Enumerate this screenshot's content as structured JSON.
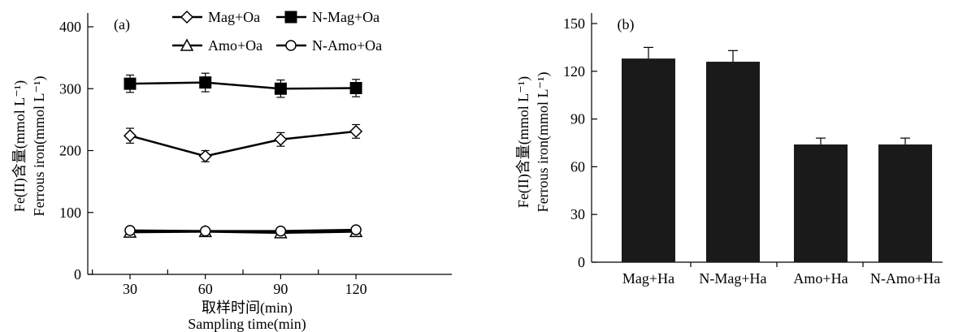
{
  "chart_data": [
    {
      "panel": "(a)",
      "type": "line",
      "x": [
        30,
        60,
        90,
        120
      ],
      "xlim": [
        0,
        135
      ],
      "ylim": [
        0,
        400
      ],
      "y_ticks": [
        0,
        100,
        200,
        300,
        400
      ],
      "x_tick_labels": [
        "30",
        "60",
        "90",
        "120"
      ],
      "xlabel": [
        "取样时间(min)",
        "Sampling time(min)"
      ],
      "ylabel": [
        "Fe(II)含量(mmol L⁻¹)",
        "Ferrous iron(mmol L⁻¹)"
      ],
      "legend_position": "top",
      "series": [
        {
          "name": "Mag+Oa",
          "marker": "diamond-open",
          "values": [
            224,
            191,
            218,
            231
          ],
          "errors": [
            12,
            9,
            11,
            11
          ]
        },
        {
          "name": "N-Mag+Oa",
          "marker": "square-filled",
          "values": [
            308,
            310,
            300,
            301
          ],
          "errors": [
            14,
            15,
            14,
            14
          ]
        },
        {
          "name": "Amo+Oa",
          "marker": "triangle-open",
          "values": [
            68,
            69,
            67,
            69
          ],
          "errors": [
            3,
            3,
            3,
            3
          ]
        },
        {
          "name": "N-Amo+Oa",
          "marker": "circle-open",
          "values": [
            71,
            70,
            70,
            72
          ],
          "errors": [
            3,
            3,
            3,
            3
          ]
        }
      ]
    },
    {
      "panel": "(b)",
      "type": "bar",
      "categories": [
        "Mag+Ha",
        "N-Mag+Ha",
        "Amo+Ha",
        "N-Amo+Ha"
      ],
      "values": [
        128,
        126,
        74,
        74
      ],
      "errors": [
        7,
        7,
        4,
        4
      ],
      "ylim": [
        0,
        150
      ],
      "y_ticks": [
        0,
        30,
        60,
        90,
        120,
        150
      ],
      "xlabel": "",
      "ylabel": [
        "Fe(II)含量(mmol L⁻¹)",
        "Ferrous iron(mmol L⁻¹)"
      ],
      "bar_color": "#1a1a1a"
    }
  ]
}
